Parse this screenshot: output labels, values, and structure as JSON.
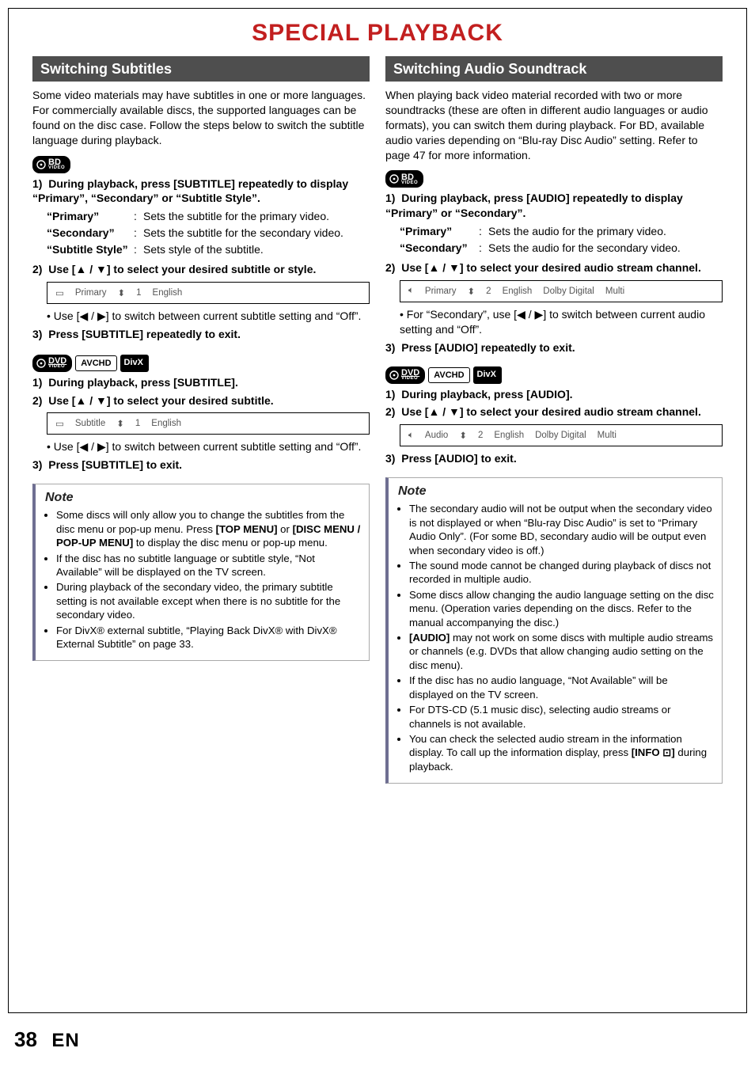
{
  "title": "SPECIAL PLAYBACK",
  "page_number": "38",
  "page_lang": "EN",
  "colors": {
    "title": "#c21f1f",
    "heading_bg": "#4e4e4e",
    "note_bar": "#6f6f92"
  },
  "glyphs": {
    "up": "▲",
    "down": "▼",
    "left": "◀",
    "right": "▶",
    "updown": "⬍"
  },
  "badges": {
    "bd": "BD",
    "bd_sub": "VIDEO",
    "dvd": "DVD",
    "dvd_sub": "VIDEO",
    "avchd": "AVCHD",
    "divx": "DivX"
  },
  "left": {
    "heading": "Switching Subtitles",
    "intro": "Some video materials may have subtitles in one or more languages. For commercially available discs, the supported languages can be found on the disc case. Follow the steps below to switch the subtitle language during playback.",
    "bd": {
      "s1": "During playback, press [SUBTITLE] repeatedly to display “Primary”, “Secondary” or “Subtitle Style”.",
      "defs": [
        {
          "k": "“Primary”",
          "v": "Sets the subtitle for the primary video."
        },
        {
          "k": "“Secondary”",
          "v": "Sets the subtitle for the secondary video."
        },
        {
          "k": "“Subtitle Style”",
          "v": "Sets style of the subtitle."
        }
      ],
      "s2_a": "Use [",
      "s2_b": " / ",
      "s2_c": "] to select your desired subtitle or style.",
      "osd": {
        "a": "Primary",
        "b": "1",
        "c": "English"
      },
      "sub_a": "Use [",
      "sub_b": " / ",
      "sub_c": "] to switch between current subtitle setting and “Off”.",
      "s3": "Press [SUBTITLE] repeatedly to exit."
    },
    "dvd": {
      "s1": "During playback, press [SUBTITLE].",
      "s2_a": "Use [",
      "s2_b": " / ",
      "s2_c": "] to select your desired subtitle.",
      "osd": {
        "a": "Subtitle",
        "b": "1",
        "c": "English"
      },
      "sub_a": "Use [",
      "sub_b": " / ",
      "sub_c": "] to switch between current subtitle setting and “Off”.",
      "s3": "Press [SUBTITLE] to exit."
    },
    "note": {
      "title": "Note",
      "items": [
        "Some discs will only allow you to change the subtitles from the disc menu or pop-up menu. Press <b>[TOP MENU]</b> or <b>[DISC MENU / POP-UP MENU]</b> to display the disc menu or pop-up menu.",
        "If the disc has no subtitle language or subtitle style, “Not Available” will be displayed on the TV screen.",
        "During playback of the secondary video, the primary subtitle setting is not available except when there is no subtitle for the secondary video.",
        "For DivX® external subtitle, “Playing Back DivX® with DivX® External Subtitle” on page 33."
      ]
    }
  },
  "right": {
    "heading": "Switching Audio Soundtrack",
    "intro": "When playing back video material recorded with two or more soundtracks (these are often in different audio languages or audio formats), you can switch them during playback. For BD, available audio varies depending on “Blu-ray Disc Audio” setting. Refer to page 47 for more information.",
    "bd": {
      "s1": "During playback, press [AUDIO] repeatedly to display “Primary” or “Secondary”.",
      "defs": [
        {
          "k": "“Primary”",
          "v": "Sets the audio for the primary video."
        },
        {
          "k": "“Secondary”",
          "v": "Sets the audio for the secondary video."
        }
      ],
      "s2_a": "Use [",
      "s2_b": " / ",
      "s2_c": "] to select your desired audio stream channel.",
      "osd": {
        "a": "Primary",
        "b": "2",
        "c": "English",
        "d": "Dolby Digital",
        "e": "Multi"
      },
      "sub_a": "For “Secondary”, use [",
      "sub_b": " / ",
      "sub_c": "] to switch between current audio setting and “Off”.",
      "s3": "Press [AUDIO] repeatedly to exit."
    },
    "dvd": {
      "s1": "During playback, press [AUDIO].",
      "s2_a": "Use [",
      "s2_b": " / ",
      "s2_c": "] to select your desired audio stream channel.",
      "osd": {
        "a": "Audio",
        "b": "2",
        "c": "English",
        "d": "Dolby Digital",
        "e": "Multi"
      },
      "s3": "Press [AUDIO] to exit."
    },
    "note": {
      "title": "Note",
      "items": [
        "The secondary audio will not be output when the secondary video is not displayed or when “Blu-ray Disc Audio” is set to “Primary Audio Only”. (For some BD, secondary audio will be output even when secondary video is off.)",
        "The sound mode cannot be changed during playback of discs not recorded in multiple audio.",
        "Some discs allow changing the audio language setting on the disc menu. (Operation varies depending on the discs. Refer to the manual accompanying the disc.)",
        "<b>[AUDIO]</b> may not work on some discs with multiple audio streams or channels (e.g. DVDs that allow changing audio setting on the disc menu).",
        "If the disc has no audio language, “Not Available” will be displayed on the TV screen.",
        "For DTS-CD (5.1 music disc), selecting audio streams or channels is not available.",
        "You can check the selected audio stream in the information display. To call up the information display, press <b>[INFO ⊡]</b> during playback."
      ]
    }
  }
}
